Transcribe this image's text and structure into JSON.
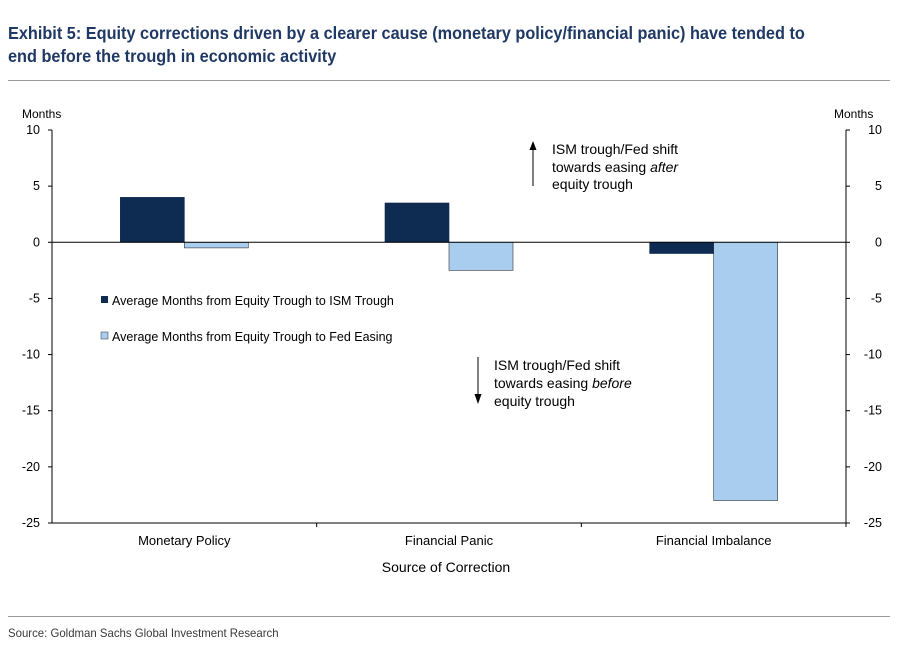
{
  "title": "Exhibit 5: Equity corrections driven by a clearer cause (monetary policy/financial panic) have tended to end before the trough in economic activity",
  "source": "Source: Goldman Sachs Global Investment Research",
  "colors": {
    "series1": "#0e2b52",
    "series2": "#a9cdef",
    "title": "#1f3864"
  },
  "chart_data": {
    "type": "bar",
    "title": "Exhibit 5: Equity corrections driven by a clearer cause (monetary policy/financial panic) have tended to end before the trough in economic activity",
    "categories": [
      "Monetary Policy",
      "Financial Panic",
      "Financial Imbalance"
    ],
    "series": [
      {
        "name": "Average Months from Equity Trough to ISM Trough",
        "values": [
          4,
          3.5,
          -1
        ]
      },
      {
        "name": "Average Months from Equity Trough to Fed Easing",
        "values": [
          -0.5,
          -2.5,
          -23
        ]
      }
    ],
    "xlabel": "Source of Correction",
    "ylabel_left": "Months",
    "ylabel_right": "Months",
    "ylim": [
      -25,
      10
    ],
    "yticks": [
      10,
      5,
      0,
      -5,
      -10,
      -15,
      -20,
      -25
    ],
    "legend_position": "left-middle",
    "annotations": {
      "after": {
        "line1": "ISM trough/Fed shift",
        "line2_prefix": "towards easing ",
        "line2_italic": "after",
        "line3": "equity trough"
      },
      "before": {
        "line1": "ISM trough/Fed shift",
        "line2_prefix": "towards easing ",
        "line2_italic": "before",
        "line3": "equity trough"
      }
    }
  }
}
